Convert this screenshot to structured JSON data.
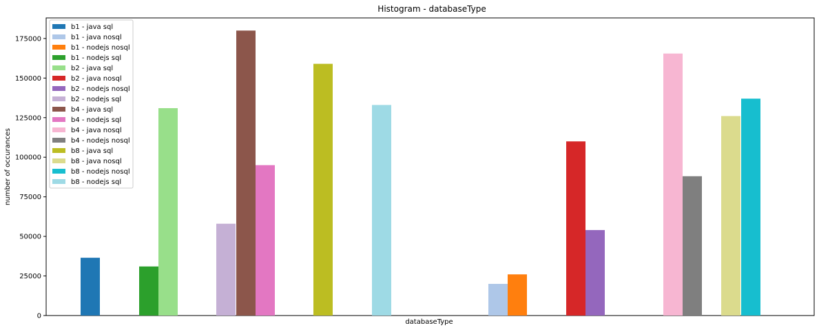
{
  "chart_data": {
    "type": "bar",
    "title": "Histogram - databaseType",
    "xlabel": "databaseType",
    "ylabel": "number of occurances",
    "ylim": [
      0,
      188000
    ],
    "yticks": [
      0,
      25000,
      50000,
      75000,
      100000,
      125000,
      150000,
      175000
    ],
    "legend_position": "top-left",
    "grid": false,
    "series": [
      {
        "name": "b1 - java sql",
        "color": "#1f77b4",
        "value": 36500
      },
      {
        "name": "b1 - java nosql",
        "color": "#aec7e8",
        "value": 20000
      },
      {
        "name": "b1 - nodejs nosql",
        "color": "#ff7f0e",
        "value": 26000
      },
      {
        "name": "b1 - nodejs sql",
        "color": "#2ca02c",
        "value": 31000
      },
      {
        "name": "b2 - java sql",
        "color": "#98df8a",
        "value": 131000
      },
      {
        "name": "b2 - java nosql",
        "color": "#d62728",
        "value": 110000
      },
      {
        "name": "b2 - nodejs nosql",
        "color": "#9467bd",
        "value": 54000
      },
      {
        "name": "b2 - nodejs sql",
        "color": "#c5b0d5",
        "value": 58000
      },
      {
        "name": "b4 - java sql",
        "color": "#8c564b",
        "value": 180000
      },
      {
        "name": "b4 - nodejs sql",
        "color": "#e377c2",
        "value": 95000
      },
      {
        "name": "b4 - java nosql",
        "color": "#f7b6d2",
        "value": 165500
      },
      {
        "name": "b4 - nodejs nosql",
        "color": "#7f7f7f",
        "value": 88000
      },
      {
        "name": "b8 - java sql",
        "color": "#bcbd22",
        "value": 159000
      },
      {
        "name": "b8 - java nosql",
        "color": "#dbdb8d",
        "value": 126000
      },
      {
        "name": "b8 - nodejs nosql",
        "color": "#17becf",
        "value": 137000
      },
      {
        "name": "b8 - nodejs sql",
        "color": "#9edae5",
        "value": 133000
      }
    ]
  }
}
